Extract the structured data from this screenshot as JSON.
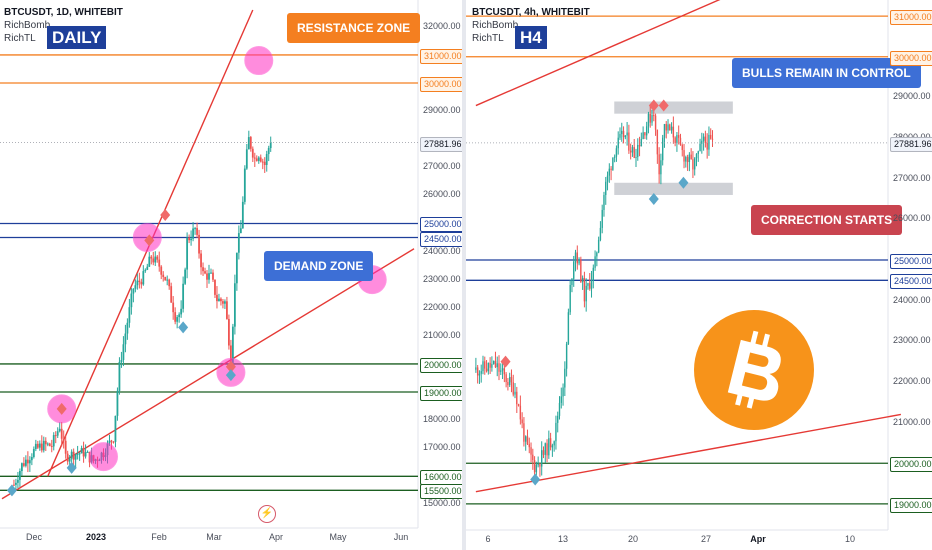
{
  "colors": {
    "up": "#26a69a",
    "down": "#ef5350",
    "resistance": "#f47f20",
    "demand": "#1e3f9a",
    "support": "#1b5e20",
    "trend": "#e53935",
    "marker_pink": "#ff2fc2",
    "diamond_red": "#f06a6a",
    "diamond_teal": "#5aa7c9",
    "gray_zone": "#c7c9cf",
    "bitcoin": "#f7931a"
  },
  "chart_data": [
    {
      "type": "candlestick",
      "symbol": "BTCUSDT",
      "timeframe": "1D",
      "exchange": "WHITEBIT",
      "header": "BTCUSDT, 1D, WHITEBIT",
      "indicators": [
        "RichBomb",
        "RichTL"
      ],
      "badge": "DAILY",
      "ylim": [
        14800,
        32600
      ],
      "y_ticks": [
        "32000.00",
        "29000.00",
        "27000.00",
        "26000.00",
        "24000.00",
        "23000.00",
        "22000.00",
        "21000.00",
        "18000.00",
        "17000.00",
        "15000.00"
      ],
      "x_ticks": [
        "Dec",
        "2023",
        "Feb",
        "Mar",
        "Apr",
        "May",
        "Jun"
      ],
      "x_ticks_bold": [
        "2023"
      ],
      "last_price": "27881.96",
      "levels": [
        {
          "value": 31000,
          "label": "31000.00",
          "kind": "resistance"
        },
        {
          "value": 30000,
          "label": "30000.00",
          "kind": "resistance"
        },
        {
          "value": 25000,
          "label": "25000.00",
          "kind": "demand"
        },
        {
          "value": 24500,
          "label": "24500.00",
          "kind": "demand"
        },
        {
          "value": 20000,
          "label": "20000.00",
          "kind": "support"
        },
        {
          "value": 19000,
          "label": "19000.00",
          "kind": "support"
        },
        {
          "value": 16000,
          "label": "16000.00",
          "kind": "support"
        },
        {
          "value": 15500,
          "label": "15500.00",
          "kind": "support"
        }
      ],
      "price_path": [
        [
          "2022-11-21",
          15700
        ],
        [
          "2022-11-25",
          16400
        ],
        [
          "2022-12-01",
          16900
        ],
        [
          "2022-12-05",
          17100
        ],
        [
          "2022-12-10",
          17100
        ],
        [
          "2022-12-14",
          17800
        ],
        [
          "2022-12-17",
          16700
        ],
        [
          "2022-12-21",
          16800
        ],
        [
          "2022-12-26",
          16850
        ],
        [
          "2022-12-31",
          16550
        ],
        [
          "2023-01-05",
          16850
        ],
        [
          "2023-01-10",
          17400
        ],
        [
          "2023-01-13",
          19900
        ],
        [
          "2023-01-16",
          21100
        ],
        [
          "2023-01-20",
          22700
        ],
        [
          "2023-01-25",
          23100
        ],
        [
          "2023-01-29",
          23800
        ],
        [
          "2023-02-02",
          23500
        ],
        [
          "2023-02-06",
          22900
        ],
        [
          "2023-02-10",
          21700
        ],
        [
          "2023-02-13",
          21800
        ],
        [
          "2023-02-16",
          24400
        ],
        [
          "2023-02-20",
          24800
        ],
        [
          "2023-02-24",
          23200
        ],
        [
          "2023-02-28",
          23100
        ],
        [
          "2023-03-03",
          22300
        ],
        [
          "2023-03-07",
          22200
        ],
        [
          "2023-03-10",
          20200
        ],
        [
          "2023-03-13",
          24100
        ],
        [
          "2023-03-15",
          24800
        ],
        [
          "2023-03-17",
          26900
        ],
        [
          "2023-03-19",
          28000
        ],
        [
          "2023-03-22",
          27300
        ],
        [
          "2023-03-24",
          27500
        ],
        [
          "2023-03-27",
          27100
        ],
        [
          "2023-03-30",
          28000
        ]
      ],
      "trendlines": [
        {
          "name": "upper channel",
          "from": [
            "2022-12-08",
            16000
          ],
          "to": [
            "2023-03-21",
            32600
          ]
        },
        {
          "name": "lower channel",
          "from": [
            "2022-11-15",
            15200
          ],
          "to": [
            "2023-06-10",
            24100
          ]
        }
      ],
      "pink_markers": [
        [
          "2022-12-15",
          18400
        ],
        [
          "2023-01-05",
          16700
        ],
        [
          "2023-01-27",
          24500
        ],
        [
          "2023-03-10",
          19700
        ],
        [
          "2023-03-24",
          30800
        ],
        [
          "2023-05-20",
          23000
        ]
      ],
      "red_diamonds": [
        [
          "2022-12-15",
          18400
        ],
        [
          "2023-01-28",
          24400
        ],
        [
          "2023-02-05",
          25300
        ],
        [
          "2023-03-10",
          19900
        ]
      ],
      "teal_diamonds": [
        [
          "2022-11-20",
          15500
        ],
        [
          "2022-12-20",
          16300
        ],
        [
          "2023-02-14",
          21300
        ],
        [
          "2023-03-10",
          19600
        ]
      ],
      "callouts": {
        "resistance": "RESISTANCE ZONE",
        "demand": "DEMAND ZONE"
      }
    },
    {
      "type": "candlestick",
      "symbol": "BTCUSDT",
      "timeframe": "4h",
      "exchange": "WHITEBIT",
      "header": "BTCUSDT, 4h, WHITEBIT",
      "indicators": [
        "RichBomb",
        "RichTL"
      ],
      "badge": "H4",
      "ylim": [
        18800,
        31200
      ],
      "y_ticks": [
        "29000.00",
        "28000.00",
        "27000.00",
        "26000.00",
        "24000.00",
        "23000.00",
        "22000.00",
        "21000.00"
      ],
      "x_ticks": [
        "6",
        "13",
        "20",
        "27",
        "Apr",
        "10"
      ],
      "x_ticks_bold": [
        "Apr"
      ],
      "last_price": "27881.96",
      "levels": [
        {
          "value": 31000,
          "label": "31000.00",
          "kind": "resistance"
        },
        {
          "value": 30000,
          "label": "30000.00",
          "kind": "resistance"
        },
        {
          "value": 25000,
          "label": "25000.00",
          "kind": "demand"
        },
        {
          "value": 24500,
          "label": "24500.00",
          "kind": "demand"
        },
        {
          "value": 20000,
          "label": "20000.00",
          "kind": "support"
        },
        {
          "value": 19000,
          "label": "19000.00",
          "kind": "support"
        }
      ],
      "price_path": [
        [
          "2023-03-04",
          22300
        ],
        [
          "2023-03-06",
          22400
        ],
        [
          "2023-03-07",
          22100
        ],
        [
          "2023-03-08",
          21800
        ],
        [
          "2023-03-09",
          20500
        ],
        [
          "2023-03-10",
          19900
        ],
        [
          "2023-03-11",
          20300
        ],
        [
          "2023-03-12",
          20700
        ],
        [
          "2023-03-12.5",
          21600
        ],
        [
          "2023-03-13",
          22200
        ],
        [
          "2023-03-13.5",
          24200
        ],
        [
          "2023-03-14",
          25300
        ],
        [
          "2023-03-14.5",
          24800
        ],
        [
          "2023-03-15",
          24100
        ],
        [
          "2023-03-16",
          24800
        ],
        [
          "2023-03-17",
          26700
        ],
        [
          "2023-03-18",
          27700
        ],
        [
          "2023-03-19",
          28100
        ],
        [
          "2023-03-20",
          27600
        ],
        [
          "2023-03-21",
          28200
        ],
        [
          "2023-03-22",
          28700
        ],
        [
          "2023-03-22.5",
          27100
        ],
        [
          "2023-03-23",
          28300
        ],
        [
          "2023-03-24",
          28100
        ],
        [
          "2023-03-25",
          27600
        ],
        [
          "2023-03-26",
          27300
        ],
        [
          "2023-03-27",
          27900
        ],
        [
          "2023-03-28",
          27881.96
        ]
      ],
      "trendlines": [
        {
          "name": "upper trend",
          "from": [
            "2023-03-04",
            28800
          ],
          "to": [
            "2023-04-08",
            32500
          ]
        },
        {
          "name": "lower trend",
          "from": [
            "2023-03-04",
            19300
          ],
          "to": [
            "2023-04-16",
            21200
          ]
        }
      ],
      "zones": [
        {
          "name": "top zone",
          "from": "2023-03-18",
          "to": "2023-03-30",
          "low": 28600,
          "high": 28900
        },
        {
          "name": "bottom zone",
          "from": "2023-03-18",
          "to": "2023-03-30",
          "low": 26600,
          "high": 26900
        }
      ],
      "red_diamonds": [
        [
          "2023-03-07",
          22500
        ],
        [
          "2023-03-22",
          28800
        ],
        [
          "2023-03-23",
          28800
        ]
      ],
      "teal_diamonds": [
        [
          "2023-03-10",
          19600
        ],
        [
          "2023-03-22",
          26500
        ],
        [
          "2023-03-25",
          26900
        ]
      ],
      "callouts": {
        "bulls": "BULLS REMAIN IN CONTROL",
        "correction": "CORRECTION STARTS"
      }
    }
  ]
}
